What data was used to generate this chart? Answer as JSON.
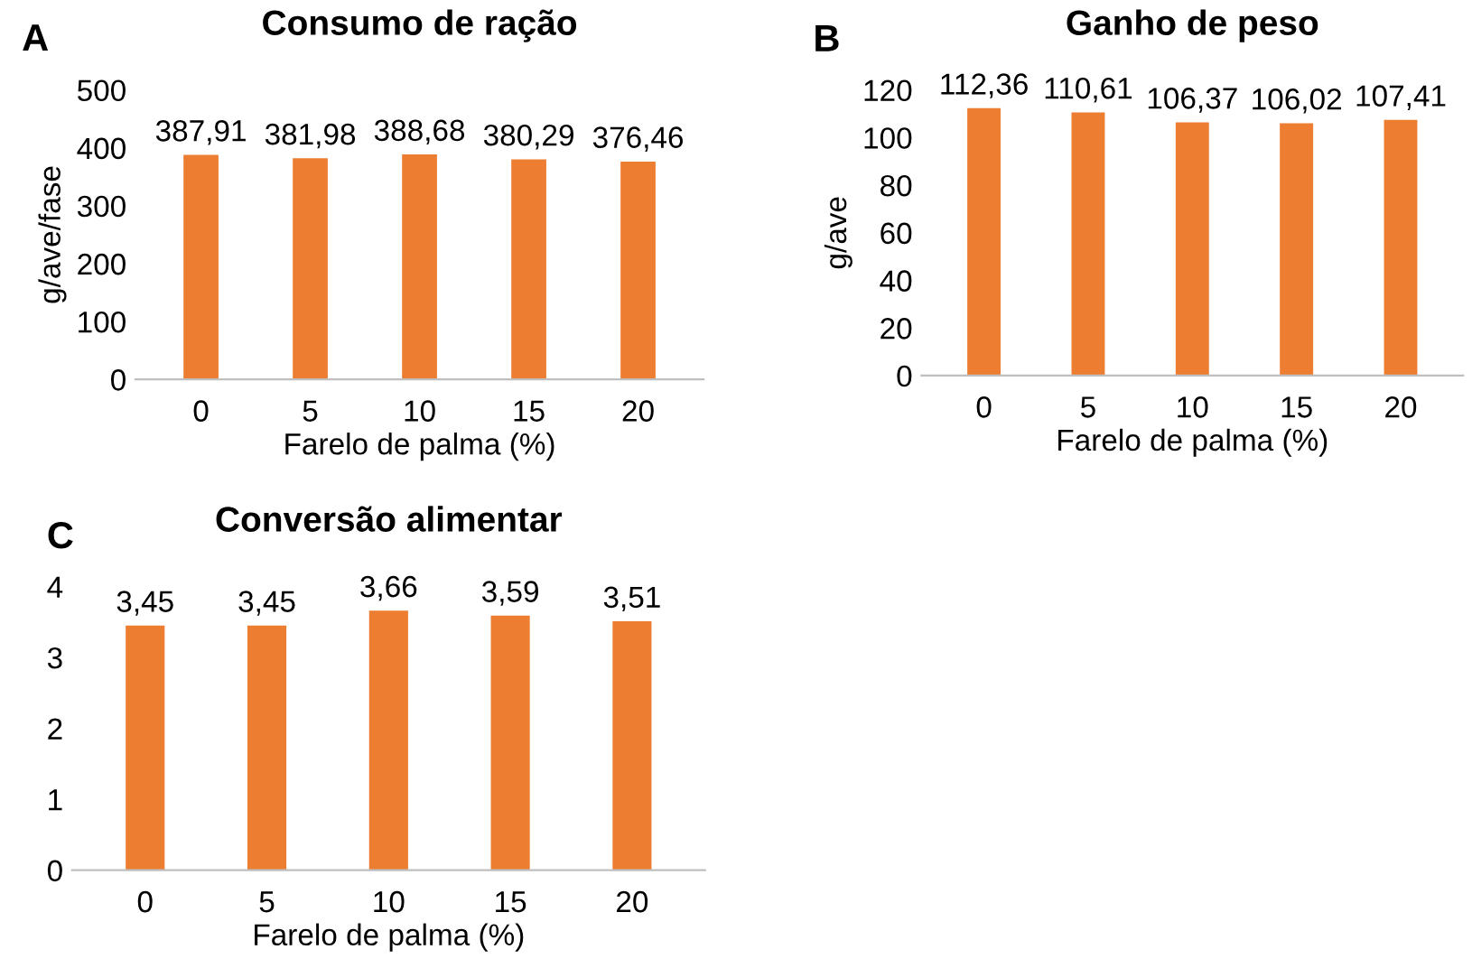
{
  "chart_data": [
    {
      "type": "bar",
      "title": "Consumo de ração",
      "xlabel": "Farelo de palma (%)",
      "ylabel": "g/ave/fase",
      "annotations": [
        "A"
      ],
      "categories": [
        "0",
        "5",
        "10",
        "15",
        "20"
      ],
      "values": [
        387.91,
        381.98,
        388.68,
        380.29,
        376.46
      ],
      "color": "#ed7d31",
      "value_labels": [
        "387,91",
        "381,98",
        "388,68",
        "380,29",
        "376,46"
      ],
      "ylim": [
        0,
        500
      ],
      "yticks": [
        0,
        100,
        200,
        300,
        400,
        500
      ],
      "grid": false,
      "legend": false
    },
    {
      "type": "bar",
      "title": "Ganho de peso",
      "xlabel": "Farelo de palma (%)",
      "ylabel": "g/ave",
      "annotations": [
        "B"
      ],
      "categories": [
        "0",
        "5",
        "10",
        "15",
        "20"
      ],
      "values": [
        112.36,
        110.61,
        106.37,
        106.02,
        107.41
      ],
      "color": "#ed7d31",
      "value_labels": [
        "112,36",
        "110,61",
        "106,37",
        "106,02",
        "107,41"
      ],
      "ylim": [
        0,
        120
      ],
      "yticks": [
        0,
        20,
        40,
        60,
        80,
        100,
        120
      ],
      "grid": false,
      "legend": false
    },
    {
      "type": "bar",
      "title": "Conversão alimentar",
      "xlabel": "Farelo de palma (%)",
      "annotations": [
        "C"
      ],
      "categories": [
        "0",
        "5",
        "10",
        "15",
        "20"
      ],
      "values": [
        3.45,
        3.45,
        3.66,
        3.59,
        3.51
      ],
      "color": "#ed7d31",
      "value_labels": [
        "3,45",
        "3,45",
        "3,66",
        "3,59",
        "3,51"
      ],
      "ylim": [
        0,
        4
      ],
      "yticks": [
        0,
        1,
        2,
        3,
        4
      ],
      "grid": false,
      "legend": false
    }
  ]
}
